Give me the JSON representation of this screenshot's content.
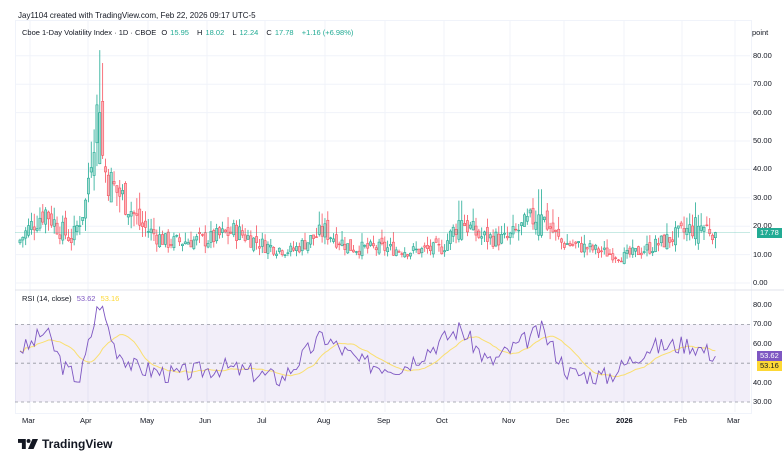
{
  "credit": "Jay1104 created with TradingView.com, Feb 22, 2026 09:17 UTC-5",
  "symbol": {
    "name": "Cboe 1-Day Volatility Index · 1D · CBOE",
    "open_label": "O",
    "open": "15.95",
    "high_label": "H",
    "high": "18.02",
    "low_label": "L",
    "low": "12.24",
    "close_label": "C",
    "close": "17.78",
    "change": "+1.16 (+6.98%)"
  },
  "price_axis": {
    "unit": "point",
    "ticks": [
      "80.00",
      "70.00",
      "60.00",
      "50.00",
      "40.00",
      "30.00",
      "20.00",
      "10.00",
      "0.00"
    ],
    "last_price": "17.78"
  },
  "rsi": {
    "label": "RSI (14, close)",
    "value": "53.62",
    "ma_value": "53.16",
    "ticks": [
      "80.00",
      "70.00",
      "60.00",
      "40.00",
      "30.00"
    ]
  },
  "time_axis": [
    "Mar",
    "Apr",
    "May",
    "Jun",
    "Jul",
    "Aug",
    "Sep",
    "Oct",
    "Nov",
    "Dec",
    "2026",
    "Feb",
    "Mar"
  ],
  "branding": "TradingView",
  "colors": {
    "up": "#22ab94",
    "down": "#f7525f",
    "rsi_line": "#7e57c2",
    "rsi_ma": "#fdd835",
    "rsi_band": "#7e57c2",
    "grid": "#f0f3fa"
  },
  "chart_data": [
    {
      "type": "candlestick",
      "title": "Cboe 1-Day Volatility Index · 1D · CBOE",
      "ylabel": "point",
      "ylim": [
        0,
        85
      ],
      "x_range": [
        "2025-02-24",
        "2026-02-20"
      ],
      "x_ticks": [
        "Mar",
        "Apr",
        "May",
        "Jun",
        "Jul",
        "Aug",
        "Sep",
        "Oct",
        "Nov",
        "Dec",
        "2026",
        "Feb",
        "Mar"
      ],
      "last": {
        "open": 15.95,
        "high": 18.02,
        "low": 12.24,
        "close": 17.78,
        "change": 1.16,
        "change_pct": 6.98
      },
      "approx_points": [
        {
          "date": "2025-02-24",
          "close": 14
        },
        {
          "date": "2025-03-03",
          "close": 20
        },
        {
          "date": "2025-03-10",
          "close": 25
        },
        {
          "date": "2025-03-17",
          "close": 19
        },
        {
          "date": "2025-03-24",
          "close": 15
        },
        {
          "date": "2025-03-31",
          "close": 28
        },
        {
          "date": "2025-04-04",
          "close": 55
        },
        {
          "date": "2025-04-07",
          "high": 82,
          "close": 60
        },
        {
          "date": "2025-04-09",
          "close": 40
        },
        {
          "date": "2025-04-14",
          "close": 33
        },
        {
          "date": "2025-04-21",
          "close": 28
        },
        {
          "date": "2025-04-28",
          "close": 20
        },
        {
          "date": "2025-05-12",
          "close": 14
        },
        {
          "date": "2025-06-02",
          "close": 15
        },
        {
          "date": "2025-06-16",
          "close": 18
        },
        {
          "date": "2025-07-01",
          "close": 13
        },
        {
          "date": "2025-07-15",
          "close": 11
        },
        {
          "date": "2025-08-01",
          "close": 18
        },
        {
          "date": "2025-08-15",
          "close": 12
        },
        {
          "date": "2025-09-01",
          "close": 12
        },
        {
          "date": "2025-09-15",
          "close": 11
        },
        {
          "date": "2025-10-01",
          "close": 12
        },
        {
          "date": "2025-10-10",
          "high": 29,
          "close": 22
        },
        {
          "date": "2025-10-20",
          "close": 16
        },
        {
          "date": "2025-11-03",
          "close": 15
        },
        {
          "date": "2025-11-20",
          "high": 33,
          "close": 24
        },
        {
          "date": "2025-12-01",
          "close": 14
        },
        {
          "date": "2025-12-15",
          "close": 12
        },
        {
          "date": "2026-01-02",
          "close": 9
        },
        {
          "date": "2026-01-15",
          "close": 12
        },
        {
          "date": "2026-02-01",
          "close": 17
        },
        {
          "date": "2026-02-10",
          "high": 24,
          "close": 20
        },
        {
          "date": "2026-02-20",
          "close": 17.78
        }
      ]
    },
    {
      "type": "line",
      "title": "RSI (14, close)",
      "ylim": [
        28,
        85
      ],
      "bands": {
        "upper": 70,
        "middle": 50,
        "lower": 30
      },
      "series": [
        {
          "name": "RSI",
          "last": 53.62
        },
        {
          "name": "RSI-based MA",
          "last": 53.16
        }
      ],
      "approx_points": [
        {
          "date": "2025-03-01",
          "rsi": 58
        },
        {
          "date": "2025-03-10",
          "rsi": 67
        },
        {
          "date": "2025-03-20",
          "rsi": 47
        },
        {
          "date": "2025-03-28",
          "rsi": 42
        },
        {
          "date": "2025-04-07",
          "rsi": 82
        },
        {
          "date": "2025-04-15",
          "rsi": 58
        },
        {
          "date": "2025-04-25",
          "rsi": 48
        },
        {
          "date": "2025-05-15",
          "rsi": 44
        },
        {
          "date": "2025-06-10",
          "rsi": 48
        },
        {
          "date": "2025-07-10",
          "rsi": 42
        },
        {
          "date": "2025-07-31",
          "rsi": 64
        },
        {
          "date": "2025-08-20",
          "rsi": 50
        },
        {
          "date": "2025-09-10",
          "rsi": 48
        },
        {
          "date": "2025-10-10",
          "rsi": 68
        },
        {
          "date": "2025-10-25",
          "rsi": 50
        },
        {
          "date": "2025-11-21",
          "rsi": 67
        },
        {
          "date": "2025-12-05",
          "rsi": 45
        },
        {
          "date": "2025-12-25",
          "rsi": 43
        },
        {
          "date": "2026-01-15",
          "rsi": 58
        },
        {
          "date": "2026-02-05",
          "rsi": 60
        },
        {
          "date": "2026-02-20",
          "rsi": 53.62
        }
      ]
    }
  ]
}
